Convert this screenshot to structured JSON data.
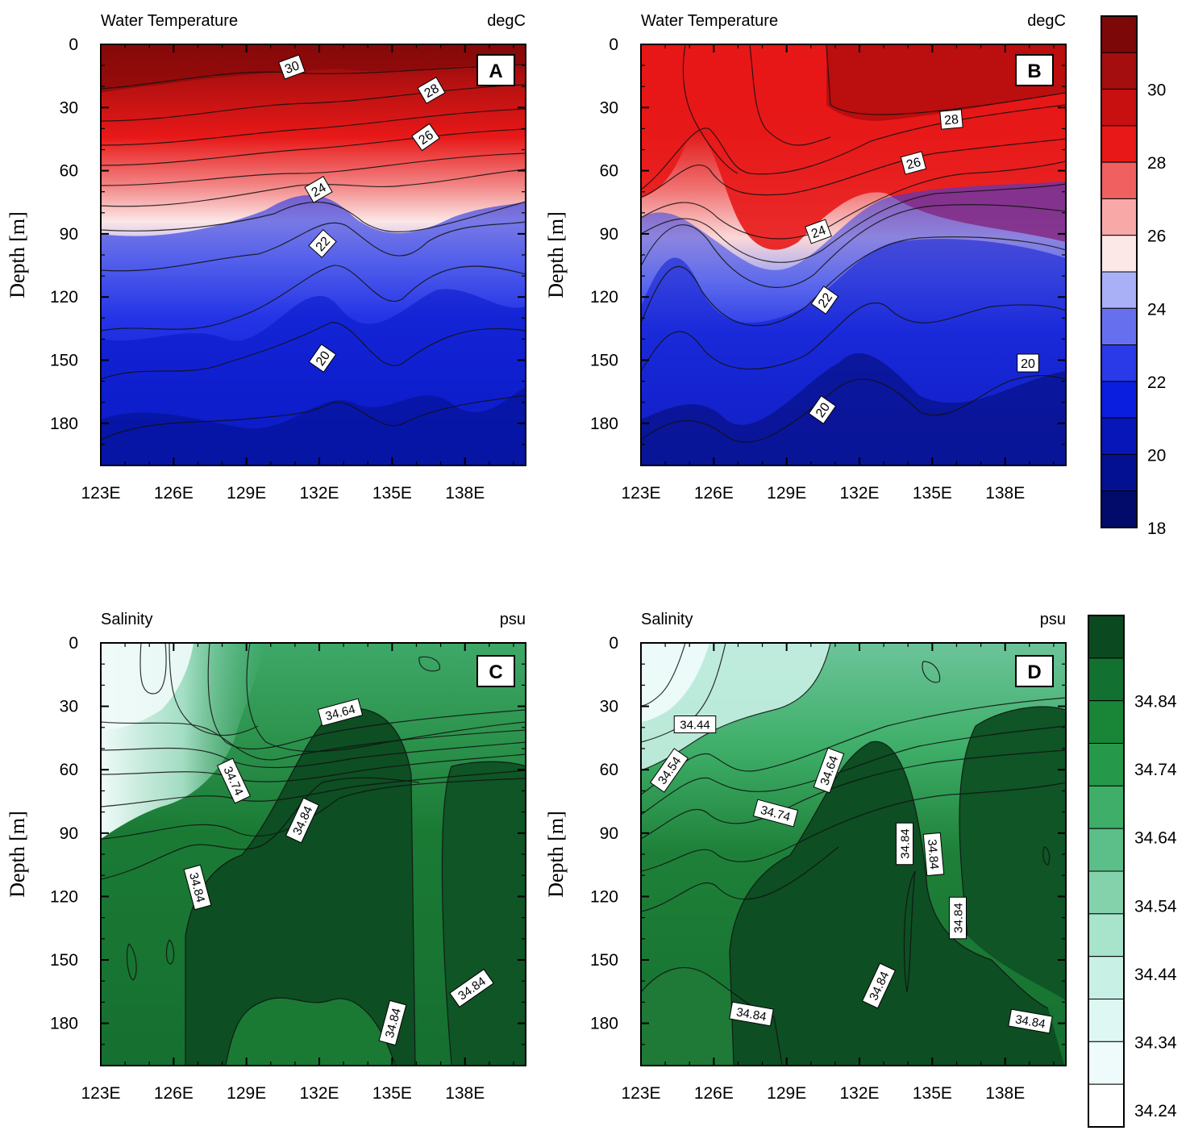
{
  "chart_data": [
    {
      "id": "A",
      "type": "heatmap",
      "panel_label": "A",
      "title_left": "Water Temperature",
      "title_right": "degC",
      "ylabel": "Depth [m]",
      "x_ticks": [
        "123E",
        "126E",
        "129E",
        "132E",
        "135E",
        "138E"
      ],
      "x_tick_values": [
        123,
        126,
        129,
        132,
        135,
        138
      ],
      "xlim": [
        123,
        140.5
      ],
      "y_ticks": [
        "0",
        "30",
        "60",
        "90",
        "120",
        "150",
        "180"
      ],
      "y_tick_values": [
        0,
        30,
        60,
        90,
        120,
        150,
        180
      ],
      "ylim": [
        0,
        200
      ],
      "contour_labels": [
        "30",
        "28",
        "26",
        "24",
        "22",
        "20"
      ],
      "colorbar": "temperature"
    },
    {
      "id": "B",
      "type": "heatmap",
      "panel_label": "B",
      "title_left": "Water Temperature",
      "title_right": "degC",
      "ylabel": "Depth [m]",
      "x_ticks": [
        "123E",
        "126E",
        "129E",
        "132E",
        "135E",
        "138E"
      ],
      "x_tick_values": [
        123,
        126,
        129,
        132,
        135,
        138
      ],
      "xlim": [
        123,
        140.5
      ],
      "y_ticks": [
        "0",
        "30",
        "60",
        "90",
        "120",
        "150",
        "180"
      ],
      "y_tick_values": [
        0,
        30,
        60,
        90,
        120,
        150,
        180
      ],
      "ylim": [
        0,
        200
      ],
      "contour_labels": [
        "28",
        "26",
        "24",
        "22",
        "20",
        "20"
      ],
      "colorbar": "temperature"
    },
    {
      "id": "C",
      "type": "heatmap",
      "panel_label": "C",
      "title_left": "Salinity",
      "title_right": "psu",
      "ylabel": "Depth [m]",
      "x_ticks": [
        "123E",
        "126E",
        "129E",
        "132E",
        "135E",
        "138E"
      ],
      "x_tick_values": [
        123,
        126,
        129,
        132,
        135,
        138
      ],
      "xlim": [
        123,
        140.5
      ],
      "y_ticks": [
        "0",
        "30",
        "60",
        "90",
        "120",
        "150",
        "180"
      ],
      "y_tick_values": [
        0,
        30,
        60,
        90,
        120,
        150,
        180
      ],
      "ylim": [
        0,
        200
      ],
      "contour_labels": [
        "34.64",
        "34.74",
        "34.84",
        "34.84",
        "34.84",
        "34.84"
      ],
      "colorbar": "salinity"
    },
    {
      "id": "D",
      "type": "heatmap",
      "panel_label": "D",
      "title_left": "Salinity",
      "title_right": "psu",
      "ylabel": "Depth [m]",
      "x_ticks": [
        "123E",
        "126E",
        "129E",
        "132E",
        "135E",
        "138E"
      ],
      "x_tick_values": [
        123,
        126,
        129,
        132,
        135,
        138
      ],
      "xlim": [
        123,
        140.5
      ],
      "y_ticks": [
        "0",
        "30",
        "60",
        "90",
        "120",
        "150",
        "180"
      ],
      "y_tick_values": [
        0,
        30,
        60,
        90,
        120,
        150,
        180
      ],
      "ylim": [
        0,
        200
      ],
      "contour_labels": [
        "34.44",
        "34.54",
        "34.64",
        "34.74",
        "34.84",
        "34.84",
        "34.84",
        "34.84",
        "34.84",
        "34.84"
      ],
      "colorbar": "salinity"
    }
  ],
  "colorbars": {
    "temperature": {
      "labels": [
        "30",
        "28",
        "26",
        "24",
        "22",
        "20",
        "18"
      ],
      "colors_top_to_bottom": [
        "#7d0808",
        "#a50e0e",
        "#c81010",
        "#e81818",
        "#f06060",
        "#f9a8a8",
        "#fde8e8",
        "#aab0f6",
        "#6670ee",
        "#2a3ae8",
        "#0a1ee0",
        "#0716b8",
        "#041092",
        "#020a6a"
      ]
    },
    "salinity": {
      "labels": [
        "34.84",
        "34.74",
        "34.64",
        "34.54",
        "34.44",
        "34.34",
        "34.24"
      ],
      "colors_top_to_bottom": [
        "#0b4a20",
        "#127030",
        "#198536",
        "#26984a",
        "#3eae68",
        "#5cbe88",
        "#84d2ac",
        "#a8e3cc",
        "#c8f0e4",
        "#def7f2",
        "#eefbfa",
        "#ffffff"
      ]
    }
  }
}
